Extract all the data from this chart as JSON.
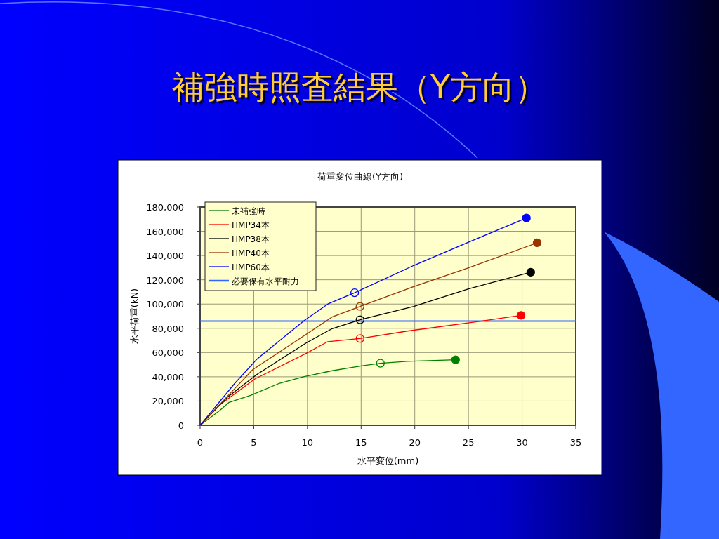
{
  "chart_data": {
    "type": "line",
    "title": "補強時照査結果（Y方向）",
    "subtitle": "荷重変位曲線(Y方向)",
    "xlabel": "水平変位(mm)",
    "ylabel": "水平荷重(kN)",
    "xlim": [
      0,
      35
    ],
    "xticks": [
      0,
      5,
      10,
      15,
      20,
      25,
      30,
      35
    ],
    "ylim": [
      0,
      180000
    ],
    "yticks": [
      {
        "value": 0,
        "label": "0"
      },
      {
        "value": 20000,
        "label": "20,000"
      },
      {
        "value": 40000,
        "label": "40,000"
      },
      {
        "value": 60000,
        "label": "60,000"
      },
      {
        "value": 80000,
        "label": "80,000"
      },
      {
        "value": 100000,
        "label": "100,000"
      },
      {
        "value": 120000,
        "label": "120,000"
      },
      {
        "value": 140000,
        "label": "140,000"
      },
      {
        "value": 160000,
        "label": "160,000"
      },
      {
        "value": 180000,
        "label": "180,000"
      }
    ],
    "grid": true,
    "legend": "top left",
    "line_style": "solid",
    "series": [
      {
        "name": "未補強時",
        "color": "#008000",
        "x": [
          0,
          1.8,
          2.7,
          4.7,
          7.3,
          9.7,
          12.3,
          14.9,
          16.8,
          19.3,
          23.8
        ],
        "values": [
          0,
          12000,
          18900,
          24700,
          34300,
          40100,
          45000,
          48800,
          51200,
          52700,
          54000
        ]
      },
      {
        "name": "HMP34本",
        "color": "#ff0000",
        "x": [
          0,
          1.85,
          5.1,
          9.9,
          11.9,
          14.9,
          19.3,
          25.8,
          29.9
        ],
        "values": [
          0,
          17000,
          38200,
          59400,
          69000,
          71600,
          77700,
          85500,
          90700
        ]
      },
      {
        "name": "HMP38本",
        "color": "#000000",
        "x": [
          0,
          2.5,
          5.3,
          9.9,
          12.3,
          14.9,
          19.9,
          25,
          30.8
        ],
        "values": [
          0,
          22800,
          42000,
          68000,
          79700,
          87000,
          98000,
          112500,
          126300
        ]
      },
      {
        "name": "HMP40本",
        "color": "#993300",
        "x": [
          0,
          2.5,
          4.9,
          9.7,
          12.3,
          14.9,
          19.9,
          25,
          31.4
        ],
        "values": [
          0,
          23500,
          45900,
          73900,
          89300,
          98000,
          114400,
          129800,
          150500
        ]
      },
      {
        "name": "HMP60本",
        "color": "#0000ff",
        "x": [
          0,
          3.2,
          5.3,
          9.7,
          11.9,
          14.4,
          19.9,
          25,
          30.4
        ],
        "values": [
          0,
          34300,
          54600,
          86400,
          100000,
          109300,
          131800,
          151000,
          170900
        ]
      },
      {
        "type": "scatter",
        "marker": "circle",
        "colors": [
          "#008000",
          "#ff0000",
          "#000000",
          "#993300",
          "#0000ff"
        ],
        "x": [
          16.8,
          14.9,
          14.9,
          14.9,
          14.4
        ],
        "values": [
          51200,
          71600,
          87000,
          98000,
          109300
        ]
      },
      {
        "type": "scatter",
        "marker": "circle",
        "colors": [
          "#008000",
          "#ff0000",
          "#000000",
          "#993300",
          "#0000ff"
        ],
        "x": [
          23.8,
          29.9,
          30.8,
          31.4,
          30.4
        ],
        "values": [
          54000,
          90700,
          126300,
          150500,
          170900
        ]
      }
    ],
    "ref_lines": [
      {
        "axis": "y",
        "value": 86000,
        "label": "必要保有水平耐力",
        "color": "#3366ff",
        "line_style": "solid"
      }
    ]
  }
}
